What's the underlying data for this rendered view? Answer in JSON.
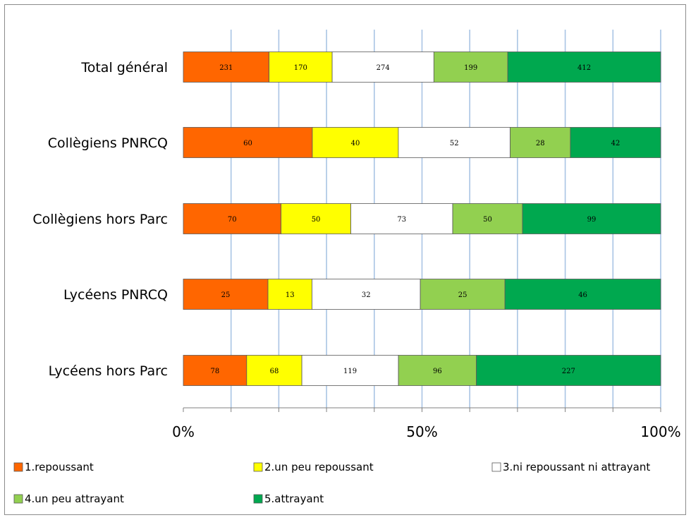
{
  "chart_data": {
    "type": "bar",
    "orientation": "horizontal",
    "stacked": "percent",
    "categories": [
      "Total général",
      "Collègiens PNRCQ",
      "Collègiens hors Parc",
      "Lycéens PNRCQ",
      "Lycéens hors Parc"
    ],
    "series": [
      {
        "name": "1.repoussant",
        "color": "#ff6600",
        "values": [
          231,
          60,
          70,
          25,
          78
        ]
      },
      {
        "name": "2.un peu repoussant",
        "color": "#ffff00",
        "values": [
          170,
          40,
          50,
          13,
          68
        ]
      },
      {
        "name": "3.ni repoussant ni attrayant",
        "color": "#ffffff",
        "values": [
          274,
          52,
          73,
          32,
          119
        ]
      },
      {
        "name": "4.un peu attrayant",
        "color": "#92d050",
        "values": [
          199,
          28,
          50,
          25,
          96
        ]
      },
      {
        "name": "5.attrayant",
        "color": "#00a84f",
        "values": [
          412,
          42,
          99,
          46,
          227
        ]
      }
    ],
    "x_ticks": [
      "0%",
      "50%",
      "100%"
    ],
    "xlim": [
      0,
      100
    ],
    "grid": true,
    "legend_position": "bottom"
  }
}
